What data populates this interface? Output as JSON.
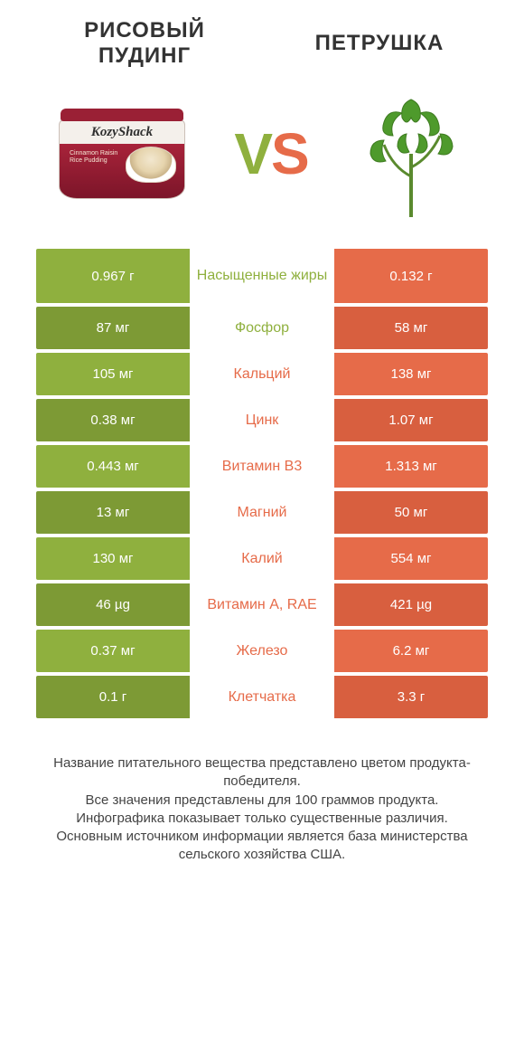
{
  "colors": {
    "leftBar": "#8fb03e",
    "rightBar": "#e66b49",
    "leftBarDark": "#7d9a35",
    "rightBarDark": "#d85f3f",
    "midTextLeft": "#e66b49",
    "midTextRight": "#8fb03e",
    "vsLeft": "#8fb03e",
    "vsRight": "#e66b49"
  },
  "header": {
    "left": "РИСОВЫЙ ПУДИНГ",
    "right": "ПЕТРУШКА"
  },
  "vs": {
    "v": "V",
    "s": "S"
  },
  "pudding": {
    "logo": "KozyShack",
    "label": "Cinnamon Raisin Rice Pudding"
  },
  "rows": [
    {
      "left": "0.967 г",
      "mid": "Насыщенные жиры",
      "right": "0.132 г",
      "winner": "left",
      "tall": true
    },
    {
      "left": "87 мг",
      "mid": "Фосфор",
      "right": "58 мг",
      "winner": "left"
    },
    {
      "left": "105 мг",
      "mid": "Кальций",
      "right": "138 мг",
      "winner": "right"
    },
    {
      "left": "0.38 мг",
      "mid": "Цинк",
      "right": "1.07 мг",
      "winner": "right"
    },
    {
      "left": "0.443 мг",
      "mid": "Витамин B3",
      "right": "1.313 мг",
      "winner": "right"
    },
    {
      "left": "13 мг",
      "mid": "Магний",
      "right": "50 мг",
      "winner": "right"
    },
    {
      "left": "130 мг",
      "mid": "Калий",
      "right": "554 мг",
      "winner": "right"
    },
    {
      "left": "46 µg",
      "mid": "Витамин A, RAE",
      "right": "421 µg",
      "winner": "right"
    },
    {
      "left": "0.37 мг",
      "mid": "Железо",
      "right": "6.2 мг",
      "winner": "right"
    },
    {
      "left": "0.1 г",
      "mid": "Клетчатка",
      "right": "3.3 г",
      "winner": "right"
    }
  ],
  "footer": [
    "Название питательного вещества представлено цветом продукта-победителя.",
    "Все значения представлены для 100 граммов продукта.",
    "Инфографика показывает только существенные различия.",
    "Основным источником информации является база министерства сельского хозяйства США."
  ]
}
